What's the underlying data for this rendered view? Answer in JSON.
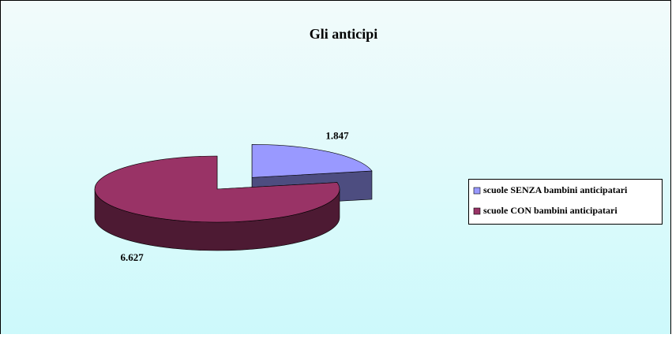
{
  "chart_data": {
    "type": "pie",
    "title": "Gli anticipi",
    "categories": [
      "scuole SENZA bambini anticipatari",
      "scuole CON bambini anticipatari"
    ],
    "values": [
      1847,
      6627
    ],
    "value_labels": [
      "1.847",
      "6.627"
    ],
    "colors": [
      "#9999ff",
      "#993366"
    ]
  }
}
